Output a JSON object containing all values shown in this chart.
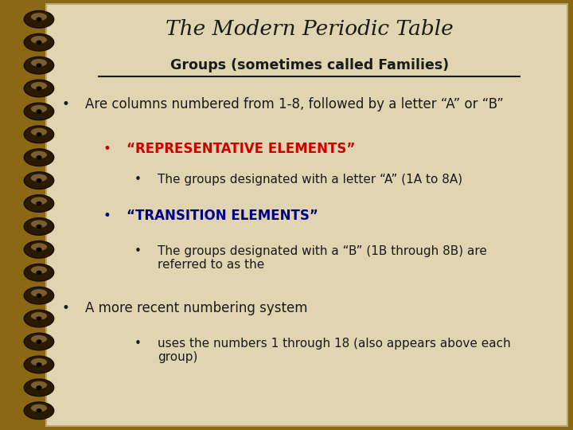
{
  "title": "The Modern Periodic Table",
  "subtitle": "Groups (sometimes called Families)",
  "bg_outer": "#8B6914",
  "bg_paper": "#E0D5B0",
  "title_color": "#1a1a1a",
  "subtitle_color": "#1a1a1a",
  "red_color": "#CC0000",
  "blue_color": "#00008B",
  "content": [
    {
      "level": 1,
      "text": "Are columns numbered from 1-8, followed by a letter “A” or “B”",
      "color": "#1a1a1a",
      "bold": false
    },
    {
      "level": 2,
      "text": "“REPRESENTATIVE ELEMENTS”",
      "color": "#CC0000",
      "bold": true
    },
    {
      "level": 3,
      "text": "The groups designated with a letter “A” (1A to 8A)",
      "color": "#1a1a1a",
      "bold": false
    },
    {
      "level": 2,
      "text": "“TRANSITION ELEMENTS”",
      "color": "#00008B",
      "bold": true
    },
    {
      "level": 3,
      "text": "The groups designated with a “B” (1B through 8B) are\nreferred to as the",
      "color": "#1a1a1a",
      "bold": false
    },
    {
      "level": 1,
      "text": "A more recent numbering system",
      "color": "#1a1a1a",
      "bold": false
    },
    {
      "level": 3,
      "text": "uses the numbers 1 through 18 (also appears above each\ngroup)",
      "color": "#1a1a1a",
      "bold": false
    }
  ]
}
